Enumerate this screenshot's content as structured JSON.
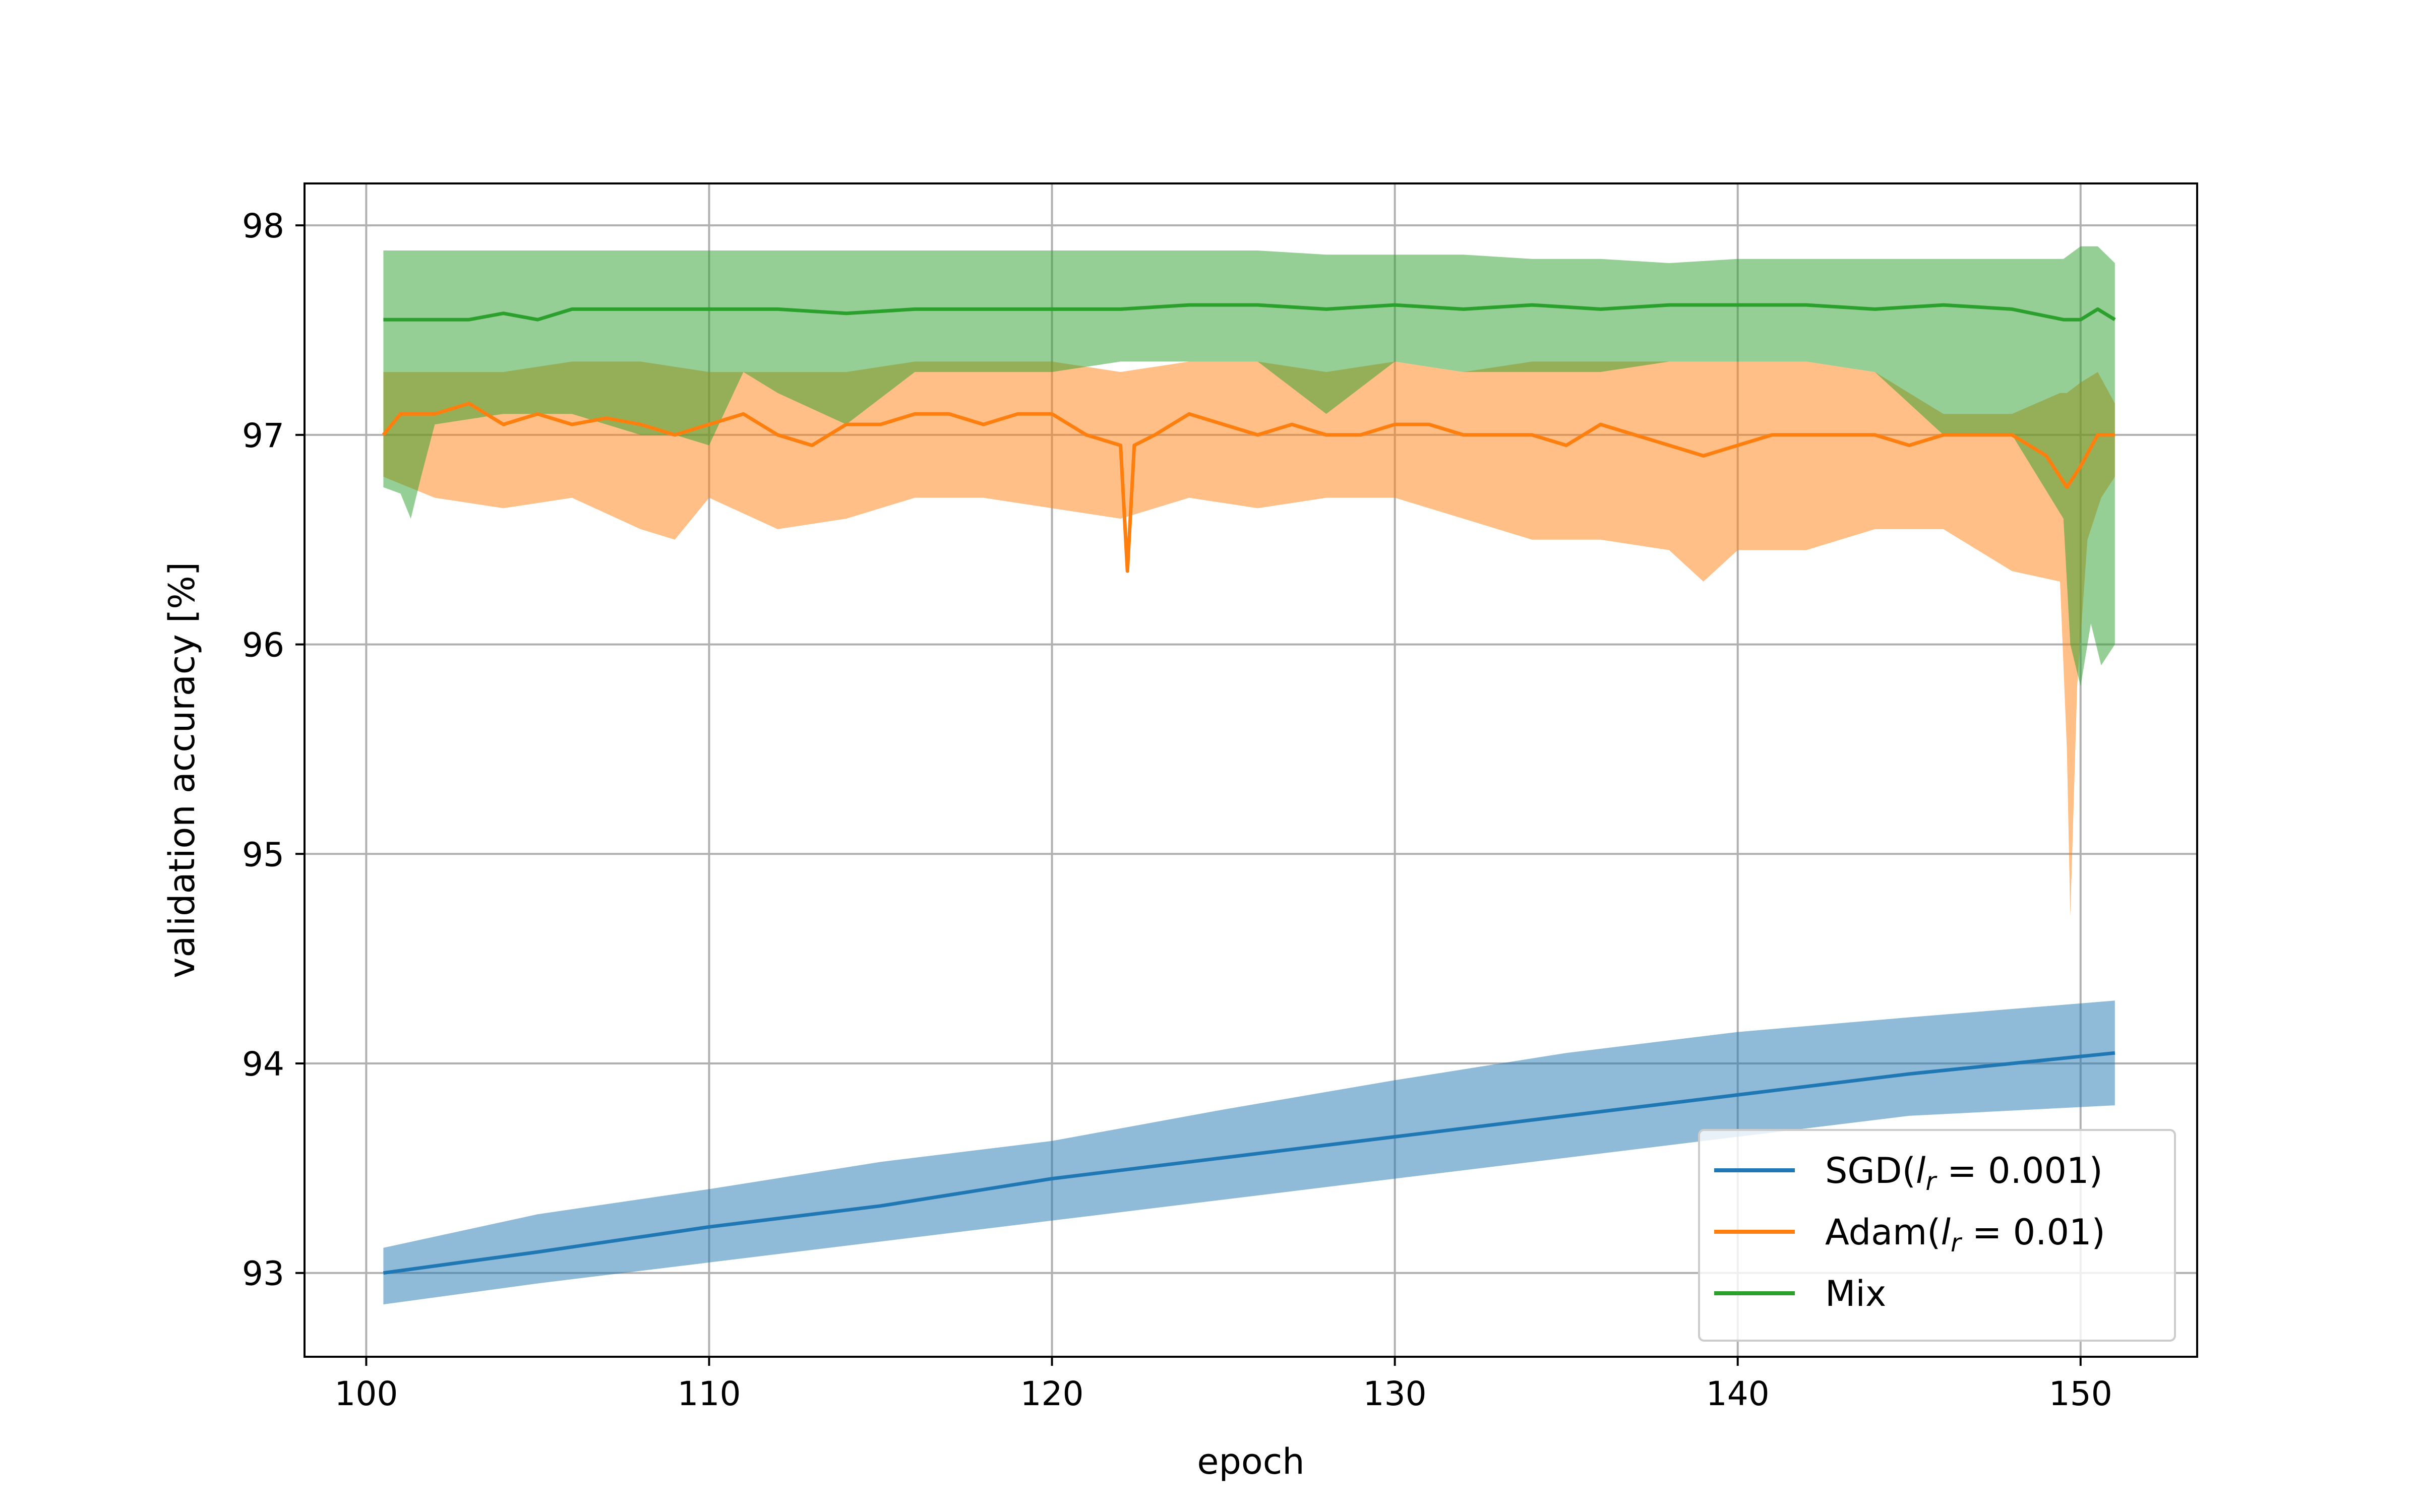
{
  "chart_data": {
    "type": "line",
    "xlabel": "epoch",
    "ylabel": "validation accuracy [%]",
    "xlim": [
      98.2,
      153.4
    ],
    "ylim": [
      92.6,
      98.2
    ],
    "xticks": [
      100,
      110,
      120,
      130,
      140,
      150
    ],
    "yticks": [
      93,
      94,
      95,
      96,
      97,
      98
    ],
    "grid": true,
    "legend_position": "lower-right",
    "series": [
      {
        "name": "SGD(l_r = 0.001)",
        "legend": {
          "prefix": "SGD(",
          "var": "l",
          "sub": "r",
          "suffix": " = 0.001)"
        },
        "color": "#1f77b4",
        "band_color": "#1f77b4",
        "line": [
          [
            100.5,
            93.0
          ],
          [
            105,
            93.1
          ],
          [
            110,
            93.22
          ],
          [
            115,
            93.32
          ],
          [
            120,
            93.45
          ],
          [
            125,
            93.55
          ],
          [
            130,
            93.65
          ],
          [
            135,
            93.75
          ],
          [
            140,
            93.85
          ],
          [
            145,
            93.95
          ],
          [
            151,
            94.05
          ]
        ],
        "band_upper": [
          [
            100.5,
            93.12
          ],
          [
            105,
            93.28
          ],
          [
            110,
            93.4
          ],
          [
            115,
            93.53
          ],
          [
            120,
            93.63
          ],
          [
            125,
            93.78
          ],
          [
            130,
            93.92
          ],
          [
            135,
            94.05
          ],
          [
            140,
            94.15
          ],
          [
            145,
            94.22
          ],
          [
            151,
            94.3
          ]
        ],
        "band_lower": [
          [
            100.5,
            92.85
          ],
          [
            105,
            92.95
          ],
          [
            110,
            93.05
          ],
          [
            115,
            93.15
          ],
          [
            120,
            93.25
          ],
          [
            125,
            93.35
          ],
          [
            130,
            93.45
          ],
          [
            135,
            93.55
          ],
          [
            140,
            93.65
          ],
          [
            145,
            93.75
          ],
          [
            151,
            93.8
          ]
        ]
      },
      {
        "name": "Adam(l_r = 0.01)",
        "legend": {
          "prefix": "Adam(",
          "var": "l",
          "sub": "r",
          "suffix": " = 0.01)"
        },
        "color": "#ff7f0e",
        "band_color": "#ff7f0e",
        "line": [
          [
            100.5,
            97.0
          ],
          [
            101,
            97.1
          ],
          [
            102,
            97.1
          ],
          [
            103,
            97.15
          ],
          [
            104,
            97.05
          ],
          [
            105,
            97.1
          ],
          [
            106,
            97.05
          ],
          [
            107,
            97.08
          ],
          [
            108,
            97.05
          ],
          [
            109,
            97.0
          ],
          [
            110,
            97.05
          ],
          [
            111,
            97.1
          ],
          [
            112,
            97.0
          ],
          [
            113,
            96.95
          ],
          [
            114,
            97.05
          ],
          [
            115,
            97.05
          ],
          [
            116,
            97.1
          ],
          [
            117,
            97.1
          ],
          [
            118,
            97.05
          ],
          [
            119,
            97.1
          ],
          [
            120,
            97.1
          ],
          [
            121,
            97.0
          ],
          [
            122,
            96.95
          ],
          [
            122.2,
            96.35
          ],
          [
            122.4,
            96.95
          ],
          [
            123,
            97.0
          ],
          [
            124,
            97.1
          ],
          [
            125,
            97.05
          ],
          [
            126,
            97.0
          ],
          [
            127,
            97.05
          ],
          [
            128,
            97.0
          ],
          [
            129,
            97.0
          ],
          [
            130,
            97.05
          ],
          [
            131,
            97.05
          ],
          [
            132,
            97.0
          ],
          [
            133,
            97.0
          ],
          [
            134,
            97.0
          ],
          [
            135,
            96.95
          ],
          [
            136,
            97.05
          ],
          [
            137,
            97.0
          ],
          [
            138,
            96.95
          ],
          [
            139,
            96.9
          ],
          [
            140,
            96.95
          ],
          [
            141,
            97.0
          ],
          [
            142,
            97.0
          ],
          [
            143,
            97.0
          ],
          [
            144,
            97.0
          ],
          [
            145,
            96.95
          ],
          [
            146,
            97.0
          ],
          [
            147,
            97.0
          ],
          [
            148,
            97.0
          ],
          [
            149,
            96.9
          ],
          [
            149.6,
            96.75
          ],
          [
            150,
            96.85
          ],
          [
            150.5,
            97.0
          ],
          [
            151,
            97.0
          ]
        ],
        "band_upper": [
          [
            100.5,
            97.3
          ],
          [
            102,
            97.3
          ],
          [
            104,
            97.3
          ],
          [
            106,
            97.35
          ],
          [
            108,
            97.35
          ],
          [
            110,
            97.3
          ],
          [
            112,
            97.3
          ],
          [
            114,
            97.3
          ],
          [
            116,
            97.35
          ],
          [
            118,
            97.35
          ],
          [
            120,
            97.35
          ],
          [
            122,
            97.3
          ],
          [
            124,
            97.35
          ],
          [
            126,
            97.35
          ],
          [
            128,
            97.3
          ],
          [
            130,
            97.35
          ],
          [
            132,
            97.3
          ],
          [
            134,
            97.35
          ],
          [
            136,
            97.35
          ],
          [
            138,
            97.35
          ],
          [
            140,
            97.35
          ],
          [
            142,
            97.35
          ],
          [
            144,
            97.3
          ],
          [
            146,
            97.1
          ],
          [
            148,
            97.1
          ],
          [
            149.4,
            97.2
          ],
          [
            149.6,
            97.2
          ],
          [
            150,
            97.25
          ],
          [
            150.5,
            97.3
          ],
          [
            151,
            97.15
          ]
        ],
        "band_lower": [
          [
            100.5,
            96.8
          ],
          [
            102,
            96.7
          ],
          [
            104,
            96.65
          ],
          [
            106,
            96.7
          ],
          [
            108,
            96.55
          ],
          [
            109,
            96.5
          ],
          [
            110,
            96.7
          ],
          [
            112,
            96.55
          ],
          [
            114,
            96.6
          ],
          [
            116,
            96.7
          ],
          [
            118,
            96.7
          ],
          [
            120,
            96.65
          ],
          [
            122,
            96.6
          ],
          [
            124,
            96.7
          ],
          [
            126,
            96.65
          ],
          [
            128,
            96.7
          ],
          [
            130,
            96.7
          ],
          [
            132,
            96.6
          ],
          [
            134,
            96.5
          ],
          [
            136,
            96.5
          ],
          [
            138,
            96.45
          ],
          [
            139,
            96.3
          ],
          [
            140,
            96.45
          ],
          [
            142,
            96.45
          ],
          [
            144,
            96.55
          ],
          [
            146,
            96.55
          ],
          [
            148,
            96.35
          ],
          [
            149.4,
            96.3
          ],
          [
            149.6,
            95.5
          ],
          [
            149.7,
            94.7
          ],
          [
            149.9,
            95.8
          ],
          [
            150.2,
            96.5
          ],
          [
            150.6,
            96.7
          ],
          [
            151,
            96.8
          ]
        ]
      },
      {
        "name": "Mix",
        "legend": {
          "prefix": "Mix",
          "var": "",
          "sub": "",
          "suffix": ""
        },
        "color": "#2ca02c",
        "band_color": "#2ca02c",
        "line": [
          [
            100.5,
            97.55
          ],
          [
            101,
            97.55
          ],
          [
            102,
            97.55
          ],
          [
            103,
            97.55
          ],
          [
            104,
            97.58
          ],
          [
            105,
            97.55
          ],
          [
            106,
            97.6
          ],
          [
            108,
            97.6
          ],
          [
            110,
            97.6
          ],
          [
            112,
            97.6
          ],
          [
            114,
            97.58
          ],
          [
            116,
            97.6
          ],
          [
            118,
            97.6
          ],
          [
            120,
            97.6
          ],
          [
            122,
            97.6
          ],
          [
            124,
            97.62
          ],
          [
            126,
            97.62
          ],
          [
            128,
            97.6
          ],
          [
            130,
            97.62
          ],
          [
            132,
            97.6
          ],
          [
            134,
            97.62
          ],
          [
            136,
            97.6
          ],
          [
            138,
            97.62
          ],
          [
            140,
            97.62
          ],
          [
            142,
            97.62
          ],
          [
            144,
            97.6
          ],
          [
            146,
            97.62
          ],
          [
            148,
            97.6
          ],
          [
            149.5,
            97.55
          ],
          [
            150,
            97.55
          ],
          [
            150.5,
            97.6
          ],
          [
            151,
            97.55
          ]
        ],
        "band_upper": [
          [
            100.5,
            97.88
          ],
          [
            102,
            97.88
          ],
          [
            104,
            97.88
          ],
          [
            106,
            97.88
          ],
          [
            108,
            97.88
          ],
          [
            110,
            97.88
          ],
          [
            112,
            97.88
          ],
          [
            114,
            97.88
          ],
          [
            116,
            97.88
          ],
          [
            118,
            97.88
          ],
          [
            120,
            97.88
          ],
          [
            122,
            97.88
          ],
          [
            124,
            97.88
          ],
          [
            126,
            97.88
          ],
          [
            128,
            97.86
          ],
          [
            130,
            97.86
          ],
          [
            132,
            97.86
          ],
          [
            134,
            97.84
          ],
          [
            136,
            97.84
          ],
          [
            138,
            97.82
          ],
          [
            140,
            97.84
          ],
          [
            142,
            97.84
          ],
          [
            144,
            97.84
          ],
          [
            146,
            97.84
          ],
          [
            148,
            97.84
          ],
          [
            149.5,
            97.84
          ],
          [
            150,
            97.9
          ],
          [
            150.5,
            97.9
          ],
          [
            151,
            97.82
          ]
        ],
        "band_lower": [
          [
            100.5,
            96.75
          ],
          [
            101,
            96.72
          ],
          [
            101.3,
            96.6
          ],
          [
            101.6,
            96.8
          ],
          [
            102,
            97.05
          ],
          [
            104,
            97.1
          ],
          [
            106,
            97.1
          ],
          [
            108,
            97.0
          ],
          [
            109,
            97.0
          ],
          [
            110,
            96.95
          ],
          [
            111,
            97.3
          ],
          [
            112,
            97.2
          ],
          [
            114,
            97.05
          ],
          [
            116,
            97.3
          ],
          [
            118,
            97.3
          ],
          [
            120,
            97.3
          ],
          [
            122,
            97.35
          ],
          [
            124,
            97.35
          ],
          [
            126,
            97.35
          ],
          [
            128,
            97.1
          ],
          [
            130,
            97.35
          ],
          [
            132,
            97.3
          ],
          [
            134,
            97.3
          ],
          [
            136,
            97.3
          ],
          [
            138,
            97.35
          ],
          [
            140,
            97.35
          ],
          [
            142,
            97.35
          ],
          [
            144,
            97.3
          ],
          [
            146,
            97.0
          ],
          [
            148,
            97.0
          ],
          [
            149.5,
            96.6
          ],
          [
            149.7,
            96.0
          ],
          [
            150,
            95.8
          ],
          [
            150.3,
            96.1
          ],
          [
            150.6,
            95.9
          ],
          [
            151,
            96.0
          ]
        ]
      }
    ]
  }
}
